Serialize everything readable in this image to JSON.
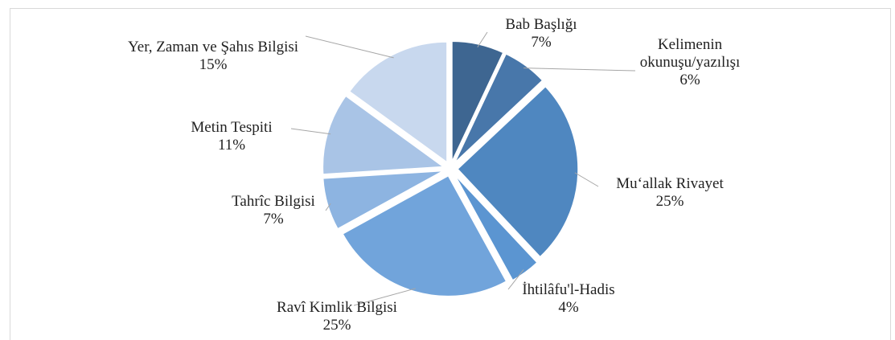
{
  "chart_data": {
    "type": "pie",
    "categories": [
      "Bab Başlığı",
      "Kelimenin okunuşu/yazılışı",
      "Mu‘allak Rivayet",
      "İhtilâfu'l-Hadis",
      "Ravî Kimlik Bilgisi",
      "Tahrîc Bilgisi",
      "Metin Tespiti",
      "Yer, Zaman ve Şahıs Bilgisi"
    ],
    "values": [
      7,
      6,
      25,
      4,
      25,
      7,
      11,
      15
    ],
    "value_labels": [
      "7%",
      "6%",
      "25%",
      "4%",
      "25%",
      "7%",
      "11%",
      "15%"
    ],
    "colors": [
      "#3e6691",
      "#4877aa",
      "#4f87c0",
      "#5b95d1",
      "#71a4db",
      "#8db4e1",
      "#a9c4e6",
      "#c8d8ee"
    ]
  }
}
